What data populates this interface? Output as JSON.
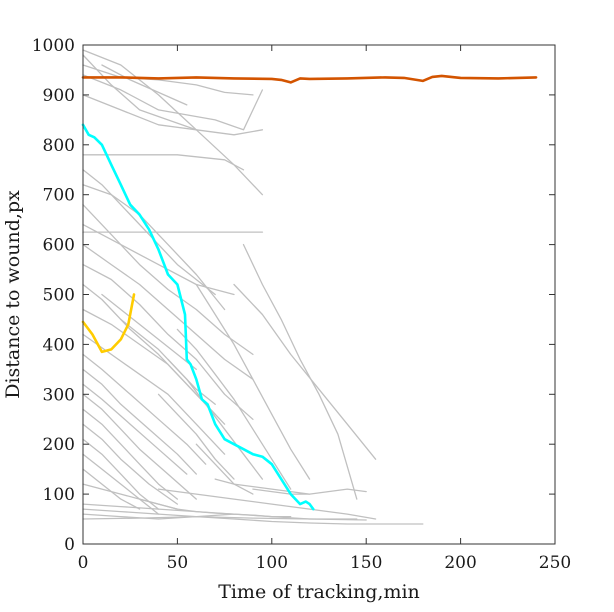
{
  "chart_data": {
    "type": "line",
    "title": "",
    "xlabel": "Time of tracking,min",
    "ylabel": "Distance to wound,px",
    "xlim": [
      0,
      250
    ],
    "ylim": [
      0,
      1000
    ],
    "xticks": [
      0,
      50,
      100,
      150,
      200,
      250
    ],
    "yticks": [
      0,
      100,
      200,
      300,
      400,
      500,
      600,
      700,
      800,
      900,
      1000
    ],
    "grid": false,
    "legend": "none",
    "background_series_color": "#c0c0c0",
    "background_series": [
      {
        "x": [
          0,
          20,
          40,
          60,
          80,
          95
        ],
        "y": [
          990,
          960,
          900,
          830,
          760,
          700
        ]
      },
      {
        "x": [
          0,
          15,
          30,
          45,
          60
        ],
        "y": [
          980,
          920,
          870,
          850,
          830
        ]
      },
      {
        "x": [
          0,
          20,
          40,
          60,
          75,
          90
        ],
        "y": [
          960,
          935,
          930,
          920,
          905,
          900
        ]
      },
      {
        "x": [
          0,
          20,
          40,
          55,
          70,
          85,
          95
        ],
        "y": [
          940,
          910,
          870,
          860,
          850,
          830,
          910
        ]
      },
      {
        "x": [
          10,
          25,
          40,
          55
        ],
        "y": [
          960,
          930,
          905,
          880
        ]
      },
      {
        "x": [
          0,
          20,
          40,
          60,
          80,
          95
        ],
        "y": [
          900,
          870,
          840,
          830,
          820,
          830
        ]
      },
      {
        "x": [
          0,
          25,
          50,
          75,
          85
        ],
        "y": [
          780,
          780,
          780,
          770,
          750
        ]
      },
      {
        "x": [
          0,
          10,
          20,
          35,
          50,
          70
        ],
        "y": [
          750,
          720,
          680,
          620,
          560,
          500
        ]
      },
      {
        "x": [
          0,
          15,
          30,
          45,
          60,
          75
        ],
        "y": [
          720,
          700,
          660,
          600,
          540,
          470
        ]
      },
      {
        "x": [
          0,
          20,
          40,
          60,
          80,
          95
        ],
        "y": [
          625,
          625,
          625,
          625,
          625,
          625
        ]
      },
      {
        "x": [
          0,
          15,
          30,
          45,
          60,
          75,
          90
        ],
        "y": [
          680,
          620,
          560,
          510,
          470,
          420,
          380
        ]
      },
      {
        "x": [
          0,
          20,
          40,
          60,
          80
        ],
        "y": [
          640,
          600,
          560,
          520,
          500
        ]
      },
      {
        "x": [
          0,
          15,
          30,
          45,
          60,
          75,
          90
        ],
        "y": [
          600,
          560,
          520,
          470,
          420,
          370,
          330
        ]
      },
      {
        "x": [
          0,
          15,
          30,
          45,
          60,
          75,
          90
        ],
        "y": [
          560,
          530,
          480,
          420,
          370,
          300,
          250
        ]
      },
      {
        "x": [
          0,
          10,
          25,
          40,
          55,
          70
        ],
        "y": [
          520,
          490,
          430,
          380,
          320,
          260
        ]
      },
      {
        "x": [
          0,
          15,
          30,
          45,
          60,
          75
        ],
        "y": [
          470,
          440,
          400,
          360,
          300,
          240
        ]
      },
      {
        "x": [
          0,
          15,
          30,
          45,
          60,
          75
        ],
        "y": [
          420,
          380,
          340,
          300,
          240,
          180
        ]
      },
      {
        "x": [
          0,
          10,
          25,
          40,
          55,
          65
        ],
        "y": [
          380,
          350,
          300,
          250,
          200,
          160
        ]
      },
      {
        "x": [
          0,
          10,
          20,
          35,
          50,
          60
        ],
        "y": [
          350,
          320,
          280,
          230,
          180,
          140
        ]
      },
      {
        "x": [
          0,
          10,
          25,
          40,
          55
        ],
        "y": [
          320,
          290,
          240,
          190,
          140
        ]
      },
      {
        "x": [
          0,
          10,
          20,
          30,
          45,
          60
        ],
        "y": [
          300,
          270,
          230,
          190,
          140,
          90
        ]
      },
      {
        "x": [
          0,
          10,
          20,
          30,
          40,
          50
        ],
        "y": [
          270,
          240,
          200,
          160,
          120,
          90
        ]
      },
      {
        "x": [
          0,
          10,
          20,
          35,
          50
        ],
        "y": [
          240,
          210,
          170,
          120,
          80
        ]
      },
      {
        "x": [
          0,
          10,
          20,
          30,
          40
        ],
        "y": [
          210,
          180,
          140,
          100,
          70
        ]
      },
      {
        "x": [
          0,
          10,
          20,
          30,
          40
        ],
        "y": [
          180,
          150,
          120,
          90,
          60
        ]
      },
      {
        "x": [
          0,
          10,
          20,
          30
        ],
        "y": [
          150,
          120,
          90,
          70
        ]
      },
      {
        "x": [
          0,
          10,
          20,
          30,
          40,
          50
        ],
        "y": [
          120,
          110,
          100,
          90,
          80,
          70
        ]
      },
      {
        "x": [
          0,
          20,
          40,
          60,
          80,
          100,
          120,
          140,
          160,
          180
        ],
        "y": [
          70,
          65,
          60,
          55,
          50,
          45,
          42,
          40,
          40,
          40
        ]
      },
      {
        "x": [
          0,
          20,
          40,
          60,
          80,
          100,
          120,
          145
        ],
        "y": [
          60,
          55,
          50,
          55,
          60,
          55,
          50,
          50
        ]
      },
      {
        "x": [
          0,
          20,
          40,
          60,
          80
        ],
        "y": [
          80,
          75,
          70,
          65,
          60
        ]
      },
      {
        "x": [
          0,
          30,
          60,
          90,
          120,
          150
        ],
        "y": [
          50,
          52,
          55,
          52,
          50,
          48
        ]
      },
      {
        "x": [
          30,
          40,
          50,
          60,
          70,
          80,
          90,
          100,
          110
        ],
        "y": [
          90,
          80,
          70,
          65,
          62,
          60,
          58,
          55,
          55
        ]
      },
      {
        "x": [
          40,
          60,
          80,
          100,
          120,
          140,
          155
        ],
        "y": [
          110,
          100,
          90,
          80,
          70,
          60,
          50
        ]
      },
      {
        "x": [
          70,
          80,
          90,
          100,
          110,
          120
        ],
        "y": [
          130,
          120,
          115,
          110,
          105,
          100
        ]
      },
      {
        "x": [
          90,
          100,
          110,
          120,
          130,
          140,
          150
        ],
        "y": [
          110,
          105,
          100,
          100,
          105,
          110,
          105
        ]
      },
      {
        "x": [
          85,
          95,
          105,
          115,
          125,
          135,
          145
        ],
        "y": [
          600,
          520,
          450,
          370,
          300,
          220,
          90
        ]
      },
      {
        "x": [
          80,
          95,
          110,
          125,
          140,
          155
        ],
        "y": [
          520,
          460,
          380,
          310,
          240,
          170
        ]
      },
      {
        "x": [
          60,
          70,
          80,
          90,
          100,
          110,
          120
        ],
        "y": [
          520,
          460,
          400,
          330,
          260,
          190,
          130
        ]
      },
      {
        "x": [
          50,
          60,
          70,
          80,
          90,
          100,
          110
        ],
        "y": [
          430,
          390,
          340,
          290,
          230,
          170,
          110
        ]
      },
      {
        "x": [
          45,
          55,
          65,
          75,
          85,
          95
        ],
        "y": [
          370,
          330,
          280,
          230,
          180,
          130
        ]
      },
      {
        "x": [
          40,
          50,
          60,
          70,
          80
        ],
        "y": [
          300,
          260,
          220,
          170,
          130
        ]
      },
      {
        "x": [
          20,
          30,
          40,
          50,
          60,
          70
        ],
        "y": [
          450,
          420,
          390,
          350,
          310,
          280
        ]
      },
      {
        "x": [
          10,
          20,
          30,
          40,
          50,
          60
        ],
        "y": [
          500,
          470,
          440,
          410,
          380,
          350
        ]
      },
      {
        "x": [
          60,
          70,
          80,
          90
        ],
        "y": [
          200,
          160,
          120,
          100
        ]
      }
    ],
    "highlight_series": [
      {
        "color": "#d35400",
        "x": [
          0,
          20,
          40,
          60,
          80,
          100,
          105,
          110,
          115,
          120,
          140,
          160,
          170,
          180,
          185,
          190,
          200,
          220,
          240
        ],
        "y": [
          935,
          935,
          933,
          935,
          933,
          932,
          930,
          925,
          933,
          932,
          933,
          935,
          934,
          928,
          936,
          938,
          934,
          933,
          935
        ]
      },
      {
        "color": "#00ffff",
        "x": [
          0,
          3,
          6,
          10,
          15,
          20,
          25,
          30,
          35,
          40,
          45,
          50,
          52,
          54,
          55,
          57,
          60,
          63,
          66,
          70,
          75,
          80,
          85,
          90,
          95,
          100,
          105,
          110,
          115,
          118,
          120,
          122
        ],
        "y": [
          840,
          820,
          815,
          800,
          760,
          720,
          680,
          660,
          630,
          590,
          540,
          520,
          490,
          460,
          370,
          360,
          330,
          290,
          280,
          240,
          210,
          200,
          190,
          180,
          175,
          160,
          130,
          100,
          80,
          85,
          80,
          70
        ]
      },
      {
        "color": "#ffcc00",
        "x": [
          0,
          5,
          10,
          15,
          20,
          24,
          27
        ],
        "y": [
          445,
          420,
          385,
          390,
          410,
          440,
          500
        ]
      }
    ]
  }
}
